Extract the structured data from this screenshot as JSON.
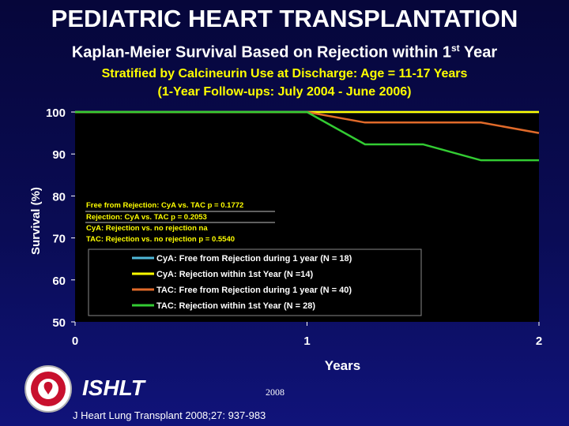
{
  "header": {
    "title": "PEDIATRIC HEART TRANSPLANTATION",
    "subtitle_main": "Kaplan-Meier Survival Based on Rejection within 1",
    "subtitle_sup": "st",
    "subtitle_end": " Year",
    "strat_line1": "Stratified by Calcineurin Use at Discharge: Age = 11-17 Years",
    "strat_line2": "(1-Year Follow-ups: July 2004 - June 2006)"
  },
  "footer": {
    "org": "ISHLT",
    "year": "2008",
    "citation": "J Heart Lung Transplant 2008;27: 937-983"
  },
  "colors": {
    "plot_bg": "#000000",
    "axis_text": "#ffffff",
    "pvalue_text": "#ffff00",
    "legend_box_bg": "#000000",
    "legend_box_border": "#888888"
  },
  "chart_data": {
    "type": "line",
    "xlabel": "Years",
    "ylabel": "Survival (%)",
    "xlim": [
      0,
      2
    ],
    "ylim": [
      50,
      100
    ],
    "x_ticks": [
      "0",
      "1",
      "2"
    ],
    "y_ticks": [
      "50",
      "60",
      "70",
      "80",
      "90",
      "100"
    ],
    "step": true,
    "series": [
      {
        "name": "CyA: Free from Rejection during 1 year (N = 18)",
        "color": "#4fb8d8",
        "x": [
          0,
          2
        ],
        "y": [
          100,
          100
        ]
      },
      {
        "name": "CyA: Rejection within 1st Year  (N =14)",
        "color": "#ffff00",
        "x": [
          0,
          2
        ],
        "y": [
          100,
          100
        ]
      },
      {
        "name": "TAC: Free from Rejection during 1 year (N = 40)",
        "color": "#e06a2a",
        "x": [
          0,
          1.0,
          1.25,
          1.75,
          2.0
        ],
        "y": [
          100,
          100,
          97.5,
          97.5,
          95.0
        ]
      },
      {
        "name": "TAC: Rejection within 1st Year  (N = 28)",
        "color": "#33cc33",
        "x": [
          0,
          1.0,
          1.25,
          1.5,
          1.75,
          2.0
        ],
        "y": [
          100,
          100,
          92.3,
          92.3,
          88.5,
          88.5
        ]
      }
    ],
    "annotations": [
      {
        "text": "Free from Rejection: CyA vs. TAC p = 0.1772"
      },
      {
        "text": "Rejection: CyA vs. TAC p = 0.2053"
      },
      {
        "text": "CyA: Rejection vs. no rejection na"
      },
      {
        "text": "TAC: Rejection vs. no rejection p = 0.5540"
      }
    ],
    "legend_position": "bottom-center"
  }
}
